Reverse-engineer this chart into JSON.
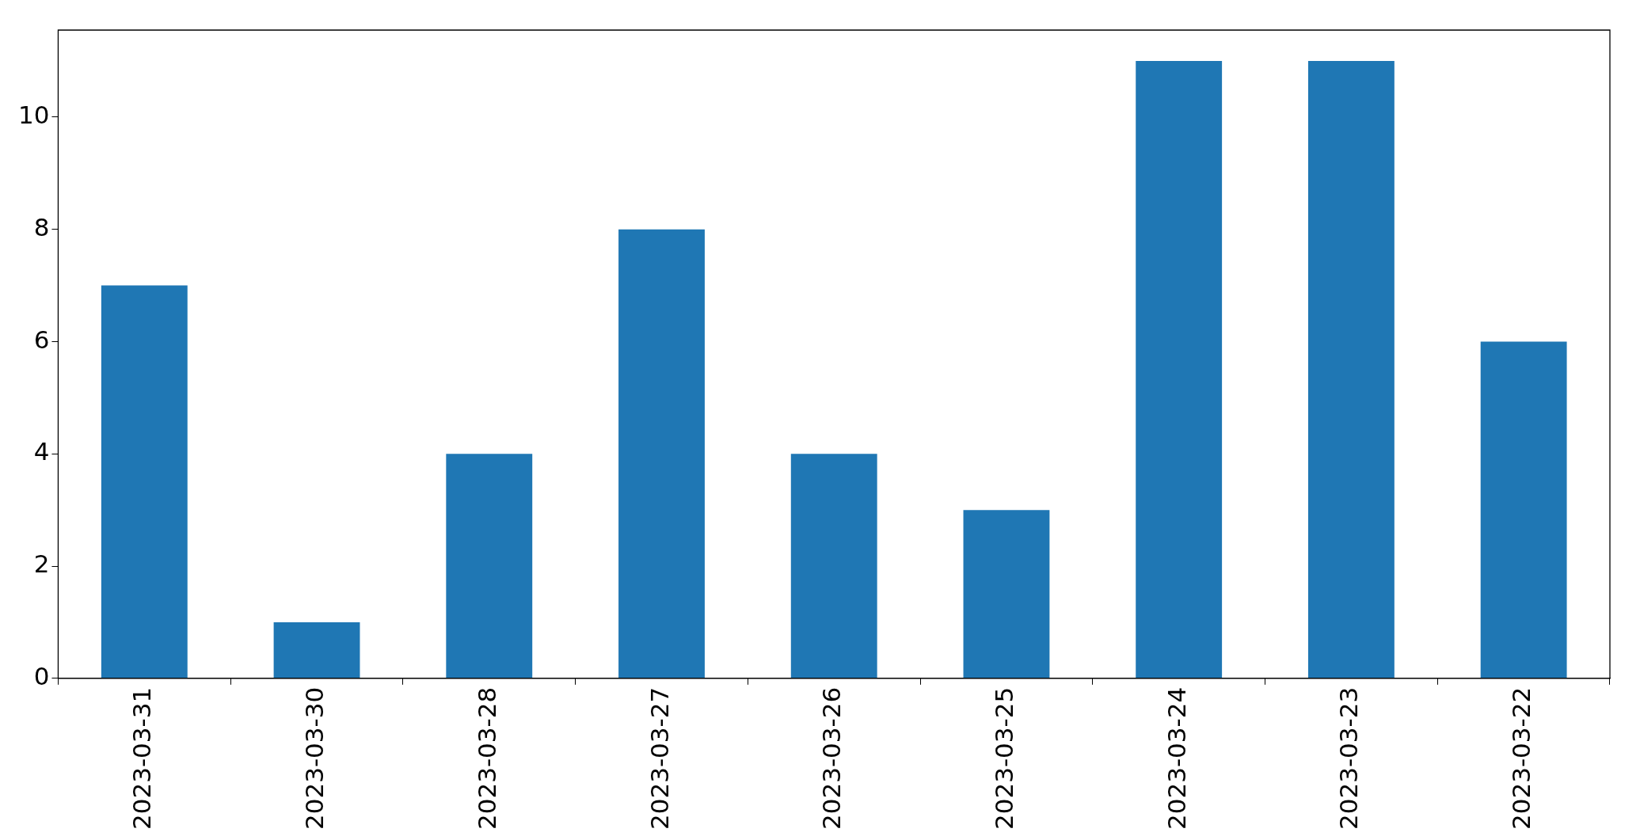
{
  "chart_data": {
    "type": "bar",
    "categories": [
      "2023-03-31",
      "2023-03-30",
      "2023-03-28",
      "2023-03-27",
      "2023-03-26",
      "2023-03-25",
      "2023-03-24",
      "2023-03-23",
      "2023-03-22"
    ],
    "values": [
      7,
      1,
      4,
      8,
      4,
      3,
      11,
      11,
      6
    ],
    "color": "#1f77b4",
    "ylim": [
      0,
      11.55
    ],
    "yticks": [
      0,
      2,
      4,
      6,
      8,
      10
    ],
    "grid": false,
    "legend": false
  }
}
